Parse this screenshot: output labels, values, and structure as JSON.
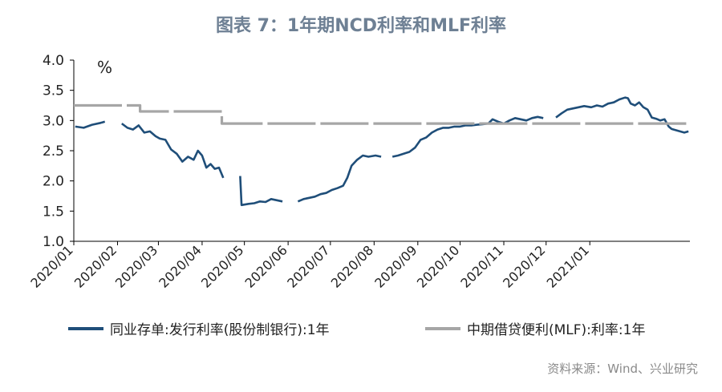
{
  "chart_data": {
    "type": "line",
    "title": "图表 7：1年期NCD利率和MLF利率",
    "ylabel": "%",
    "ylim": [
      1.0,
      4.0
    ],
    "y_ticks": [
      "1.0",
      "1.5",
      "2.0",
      "2.5",
      "3.0",
      "3.5",
      "4.0"
    ],
    "x_ticks": [
      "2020/01",
      "2020/02",
      "2020/03",
      "2020/04",
      "2020/05",
      "2020/06",
      "2020/07",
      "2020/08",
      "2020/09",
      "2020/10",
      "2020/11",
      "2020/12",
      "2021/01"
    ],
    "grid": false,
    "legend_position": "bottom",
    "series": [
      {
        "name": "同业存单:发行利率(股份制银行):1年",
        "color": "#1f4e79",
        "points": [
          [
            "2020-01-02",
            2.9
          ],
          [
            "2020-01-08",
            2.88
          ],
          [
            "2020-01-14",
            2.93
          ],
          [
            "2020-01-20",
            2.96
          ],
          [
            "2020-01-23",
            2.98
          ],
          [
            "2020-02-04",
            2.95
          ],
          [
            "2020-02-08",
            2.88
          ],
          [
            "2020-02-12",
            2.85
          ],
          [
            "2020-02-16",
            2.92
          ],
          [
            "2020-02-20",
            2.8
          ],
          [
            "2020-02-24",
            2.82
          ],
          [
            "2020-02-28",
            2.74
          ],
          [
            "2020-03-02",
            2.7
          ],
          [
            "2020-03-06",
            2.68
          ],
          [
            "2020-03-10",
            2.52
          ],
          [
            "2020-03-14",
            2.45
          ],
          [
            "2020-03-18",
            2.32
          ],
          [
            "2020-03-22",
            2.4
          ],
          [
            "2020-03-26",
            2.35
          ],
          [
            "2020-03-29",
            2.5
          ],
          [
            "2020-04-01",
            2.42
          ],
          [
            "2020-04-04",
            2.22
          ],
          [
            "2020-04-07",
            2.28
          ],
          [
            "2020-04-10",
            2.2
          ],
          [
            "2020-04-13",
            2.22
          ],
          [
            "2020-04-16",
            2.05
          ],
          [
            "2020-04-28",
            2.08
          ],
          [
            "2020-04-29",
            1.6
          ],
          [
            "2020-05-04",
            1.62
          ],
          [
            "2020-05-08",
            1.63
          ],
          [
            "2020-05-12",
            1.66
          ],
          [
            "2020-05-16",
            1.65
          ],
          [
            "2020-05-20",
            1.7
          ],
          [
            "2020-05-24",
            1.68
          ],
          [
            "2020-05-28",
            1.66
          ],
          [
            "2020-06-08",
            1.66
          ],
          [
            "2020-06-12",
            1.7
          ],
          [
            "2020-06-16",
            1.72
          ],
          [
            "2020-06-20",
            1.74
          ],
          [
            "2020-06-24",
            1.78
          ],
          [
            "2020-06-28",
            1.8
          ],
          [
            "2020-07-02",
            1.85
          ],
          [
            "2020-07-06",
            1.88
          ],
          [
            "2020-07-10",
            1.92
          ],
          [
            "2020-07-13",
            2.05
          ],
          [
            "2020-07-16",
            2.25
          ],
          [
            "2020-07-20",
            2.35
          ],
          [
            "2020-07-24",
            2.42
          ],
          [
            "2020-07-28",
            2.4
          ],
          [
            "2020-08-02",
            2.42
          ],
          [
            "2020-08-06",
            2.4
          ],
          [
            "2020-08-14",
            2.4
          ],
          [
            "2020-08-18",
            2.42
          ],
          [
            "2020-08-22",
            2.45
          ],
          [
            "2020-08-26",
            2.48
          ],
          [
            "2020-08-30",
            2.55
          ],
          [
            "2020-09-03",
            2.68
          ],
          [
            "2020-09-07",
            2.72
          ],
          [
            "2020-09-11",
            2.8
          ],
          [
            "2020-09-15",
            2.85
          ],
          [
            "2020-09-19",
            2.88
          ],
          [
            "2020-09-23",
            2.88
          ],
          [
            "2020-09-27",
            2.9
          ],
          [
            "2020-10-01",
            2.9
          ],
          [
            "2020-10-05",
            2.92
          ],
          [
            "2020-10-09",
            2.92
          ],
          [
            "2020-10-13",
            2.93
          ],
          [
            "2020-10-17",
            2.94
          ],
          [
            "2020-10-21",
            2.95
          ],
          [
            "2020-10-24",
            3.02
          ],
          [
            "2020-10-28",
            2.98
          ],
          [
            "2020-11-01",
            2.95
          ],
          [
            "2020-11-05",
            3.0
          ],
          [
            "2020-11-09",
            3.04
          ],
          [
            "2020-11-13",
            3.02
          ],
          [
            "2020-11-17",
            3.0
          ],
          [
            "2020-11-21",
            3.04
          ],
          [
            "2020-11-25",
            3.06
          ],
          [
            "2020-11-29",
            3.04
          ],
          [
            "2020-12-08",
            3.05
          ],
          [
            "2020-12-12",
            3.12
          ],
          [
            "2020-12-16",
            3.18
          ],
          [
            "2020-12-20",
            3.2
          ],
          [
            "2020-12-24",
            3.22
          ],
          [
            "2020-12-28",
            3.24
          ],
          [
            "2021-01-02",
            3.22
          ],
          [
            "2021-01-06",
            3.25
          ],
          [
            "2021-01-10",
            3.23
          ],
          [
            "2021-01-14",
            3.28
          ],
          [
            "2021-01-18",
            3.3
          ],
          [
            "2021-01-22",
            3.35
          ],
          [
            "2021-01-26",
            3.38
          ],
          [
            "2021-01-28",
            3.37
          ],
          [
            "2021-01-30",
            3.28
          ],
          [
            "2021-02-02",
            3.25
          ],
          [
            "2021-02-05",
            3.3
          ],
          [
            "2021-02-08",
            3.22
          ],
          [
            "2021-02-11",
            3.18
          ],
          [
            "2021-02-14",
            3.05
          ],
          [
            "2021-02-17",
            3.03
          ],
          [
            "2021-02-20",
            3.0
          ],
          [
            "2021-02-23",
            3.02
          ],
          [
            "2021-02-26",
            2.9
          ],
          [
            "2021-02-28",
            2.86
          ],
          [
            "2021-03-03",
            2.84
          ],
          [
            "2021-03-06",
            2.82
          ],
          [
            "2021-03-09",
            2.8
          ],
          [
            "2021-03-12",
            2.82
          ]
        ]
      },
      {
        "name": "中期借贷便利(MLF):利率:1年",
        "color": "#a6a6a6",
        "points": [
          [
            "2020-01-01",
            3.25
          ],
          [
            "2020-02-17",
            3.25
          ],
          [
            "2020-02-17",
            3.15
          ],
          [
            "2020-04-15",
            3.15
          ],
          [
            "2020-04-15",
            2.95
          ],
          [
            "2021-03-13",
            2.95
          ]
        ]
      }
    ]
  },
  "legend": [
    {
      "label": "同业存单:发行利率(股份制银行):1年",
      "color": "#1f4e79"
    },
    {
      "label": "中期借贷便利(MLF):利率:1年",
      "color": "#a6a6a6"
    }
  ],
  "source": "资料来源：Wind、兴业研究"
}
